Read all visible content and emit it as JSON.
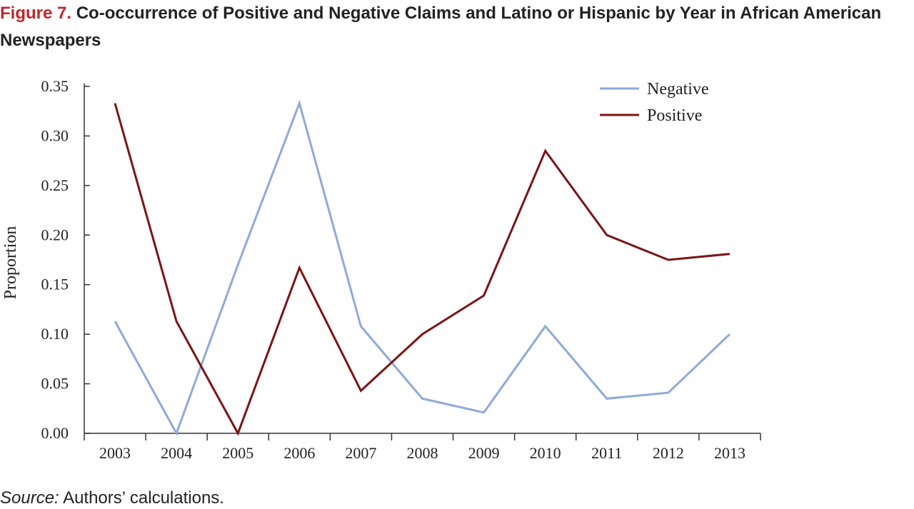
{
  "title": {
    "label": "Figure 7.",
    "text": "Co-occurrence of Positive and Negative Claims and Latino or Hispanic by Year in African American Newspapers"
  },
  "source": {
    "label": "Source:",
    "text": "Authors’ calculations."
  },
  "chart_data": {
    "type": "line",
    "title": "Co-occurrence of Positive and Negative Claims and Latino or Hispanic by Year in African American Newspapers",
    "xlabel": "",
    "ylabel": "Proportion",
    "ylim": [
      0,
      0.35
    ],
    "yticks": [
      "0.00",
      "0.05",
      "0.10",
      "0.15",
      "0.20",
      "0.25",
      "0.30",
      "0.35"
    ],
    "categories": [
      "2003",
      "2004",
      "2005",
      "2006",
      "2007",
      "2008",
      "2009",
      "2010",
      "2011",
      "2012",
      "2013"
    ],
    "grid": false,
    "legend_position": "top-right",
    "series": [
      {
        "name": "Negative",
        "color": "#8eaad8",
        "values": [
          0.113,
          0.0,
          0.17,
          0.333,
          0.108,
          0.035,
          0.021,
          0.108,
          0.035,
          0.041,
          0.1
        ]
      },
      {
        "name": "Positive",
        "color": "#7a1416",
        "values": [
          0.333,
          0.113,
          0.0,
          0.167,
          0.043,
          0.1,
          0.139,
          0.285,
          0.2,
          0.175,
          0.181
        ]
      }
    ]
  }
}
